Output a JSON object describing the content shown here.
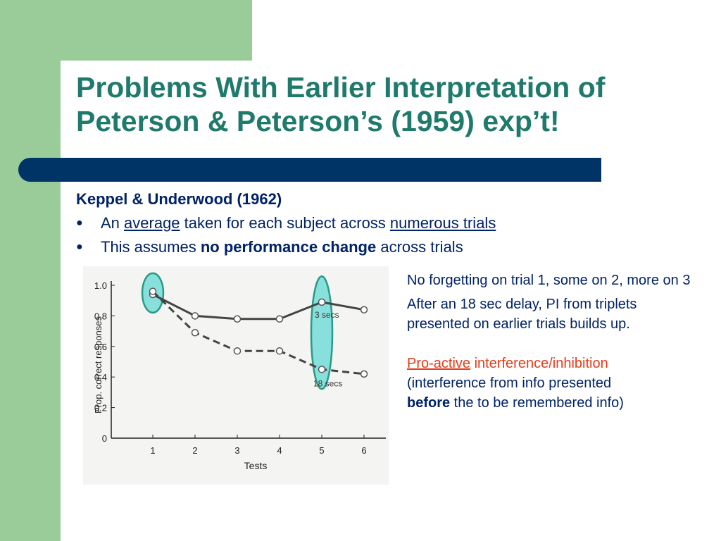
{
  "slide": {
    "title_line1": "Problems With Earlier Interpretation of",
    "title_line2": "Peterson & Peterson’s (1959) exp’t!",
    "heading": "Keppel & Underwood (1962)",
    "bullet1": {
      "pre": "An ",
      "u1": "average",
      "mid": " taken for each subject across ",
      "u2": "numerous trials"
    },
    "bullet2": {
      "pre": "This assumes ",
      "bold": "no performance change",
      "post": " across trials"
    },
    "notes": {
      "p1": "No forgetting on trial 1, some on 2, more on 3",
      "p2": "After an 18 sec delay, PI from triplets presented on earlier trials builds up.",
      "p3_link": "Pro-active",
      "p3_red": " interference/inhibition",
      "p3_line2": "(interference from info presented ",
      "p3_bold": "before",
      "p3_end": " the to be remembered info)"
    }
  },
  "chart_data": {
    "type": "line",
    "x": [
      1,
      2,
      3,
      4,
      5,
      6
    ],
    "xlabel": "Tests",
    "ylabel": "Prop. correct responses",
    "ylim": [
      0,
      1.0
    ],
    "yticks": [
      "0",
      "0.2",
      "0.4",
      "0.6",
      "0.8",
      "1.0"
    ],
    "xticks": [
      "1",
      "2",
      "3",
      "4",
      "5",
      "6"
    ],
    "series": [
      {
        "name": "3 secs",
        "values": [
          0.94,
          0.8,
          0.78,
          0.78,
          0.89,
          0.84
        ],
        "dash": false
      },
      {
        "name": "18 secs",
        "values": [
          0.96,
          0.69,
          0.57,
          0.57,
          0.45,
          0.42
        ],
        "dash": true
      }
    ],
    "highlight_color": "#88e0dc"
  }
}
